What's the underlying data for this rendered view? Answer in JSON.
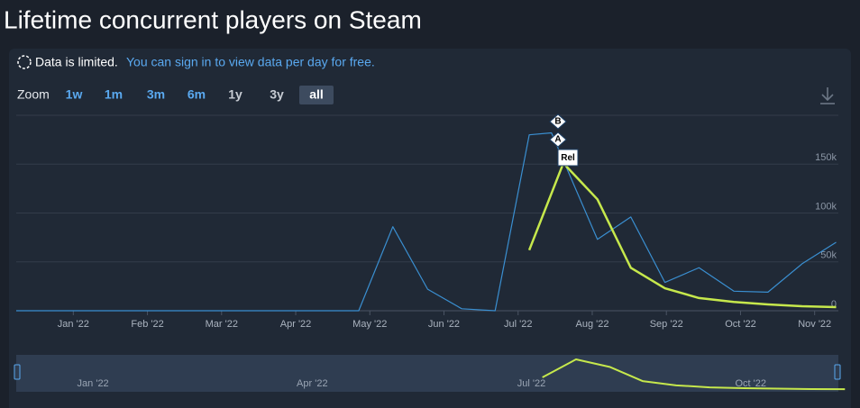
{
  "header": {
    "title": "Lifetime concurrent players on Steam"
  },
  "notice": {
    "text": "Data is limited.",
    "link": "You can sign in to view data per day for free."
  },
  "zoom": {
    "label": "Zoom",
    "options": [
      {
        "label": "1w",
        "color": "#5aa9f0"
      },
      {
        "label": "1m",
        "color": "#5aa9f0"
      },
      {
        "label": "3m",
        "color": "#5aa9f0"
      },
      {
        "label": "6m",
        "color": "#5aa9f0"
      },
      {
        "label": "1y",
        "color": "#c7ccd3"
      },
      {
        "label": "3y",
        "color": "#c7ccd3"
      },
      {
        "label": "all",
        "color": "#ffffff"
      }
    ],
    "selected": 6
  },
  "chart_data": {
    "type": "line",
    "xlim": [
      -0.77,
      10.32
    ],
    "xticks": [
      {
        "value": 0,
        "label": "Jan '22"
      },
      {
        "value": 1,
        "label": "Feb '22"
      },
      {
        "value": 2,
        "label": "Mar '22"
      },
      {
        "value": 3,
        "label": "Apr '22"
      },
      {
        "value": 4,
        "label": "May '22"
      },
      {
        "value": 5,
        "label": "Jun '22"
      },
      {
        "value": 6,
        "label": "Jul '22"
      },
      {
        "value": 7,
        "label": "Aug '22"
      },
      {
        "value": 8,
        "label": "Sep '22"
      },
      {
        "value": 9,
        "label": "Oct '22"
      },
      {
        "value": 10,
        "label": "Nov '22"
      }
    ],
    "ylim": [
      0,
      200000
    ],
    "yticks": [
      {
        "value": 0,
        "label": "0"
      },
      {
        "value": 50000,
        "label": "50k"
      },
      {
        "value": 100000,
        "label": "100k"
      },
      {
        "value": 150000,
        "label": "150k"
      }
    ],
    "grid": true,
    "series": [
      {
        "color": "#3a8fd1",
        "x": [
          -0.77,
          3.85,
          4.31,
          4.78,
          5.24,
          5.69,
          6.15,
          6.45,
          7.07,
          7.52,
          7.98,
          8.44,
          8.91,
          9.37,
          9.83,
          10.29
        ],
        "values": [
          0,
          0,
          86000,
          22000,
          2000,
          0,
          180000,
          182000,
          73000,
          96000,
          29000,
          44000,
          20000,
          19000,
          48000,
          70000
        ]
      },
      {
        "color": "#c6e84c",
        "x": [
          6.15,
          6.61,
          7.07,
          7.52,
          7.98,
          8.44,
          8.91,
          9.37,
          9.83,
          10.29
        ],
        "values": [
          62000,
          151000,
          114000,
          44000,
          23000,
          13000,
          9000,
          6500,
          4600,
          3700
        ]
      }
    ],
    "annotations": [
      "B",
      "A",
      "Rel"
    ]
  },
  "navigator": {
    "xlim": [
      -1.05,
      10.2
    ],
    "ylim": [
      0,
      160000
    ],
    "xticks": [
      {
        "value": 0,
        "label": "Jan '22"
      },
      {
        "value": 3,
        "label": "Apr '22"
      },
      {
        "value": 6,
        "label": "Jul '22"
      },
      {
        "value": 9,
        "label": "Oct '22"
      }
    ]
  }
}
